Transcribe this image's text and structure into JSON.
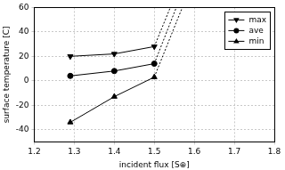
{
  "chart_data": {
    "type": "line",
    "x_label": "incident flux [S⊕]",
    "y_label": "surface temperature [C]",
    "xlim": [
      1.2,
      1.8
    ],
    "xticks": [
      1.2,
      1.3,
      1.4,
      1.5,
      1.6,
      1.7,
      1.8
    ],
    "ylim": [
      -50,
      60
    ],
    "yticks": [
      -40,
      -20,
      0,
      20,
      40,
      60
    ],
    "grid": true,
    "legend": "upper right",
    "series": [
      {
        "name": "max",
        "color": "#000000",
        "marker": "triangle_down",
        "line_style": "solid",
        "x": [
          1.29,
          1.4,
          1.5
        ],
        "values": [
          20,
          22,
          28
        ]
      },
      {
        "name": "ave",
        "color": "#000000",
        "marker": "circle",
        "line_style": "solid",
        "x": [
          1.29,
          1.4,
          1.5
        ],
        "values": [
          4,
          8,
          14
        ]
      },
      {
        "name": "min",
        "color": "#000000",
        "marker": "triangle_up",
        "line_style": "solid",
        "x": [
          1.29,
          1.4,
          1.5
        ],
        "values": [
          -34,
          -13,
          3
        ]
      },
      {
        "color": "#000000",
        "marker": "none",
        "line_style": "dotted",
        "x": [
          1.5,
          1.54
        ],
        "values": [
          28,
          60
        ]
      },
      {
        "color": "#000000",
        "marker": "none",
        "line_style": "dotted",
        "x": [
          1.5,
          1.555
        ],
        "values": [
          14,
          60
        ]
      },
      {
        "color": "#000000",
        "marker": "none",
        "line_style": "dotted",
        "x": [
          1.5,
          1.57
        ],
        "values": [
          3,
          60
        ]
      }
    ]
  }
}
